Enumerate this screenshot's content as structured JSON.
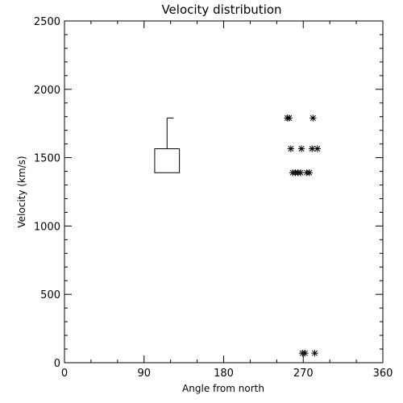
{
  "chart_data": {
    "type": "scatter",
    "title": "Velocity distribution",
    "xlabel": "Angle from north",
    "ylabel": "Velocity (km/s)",
    "xlim": [
      0,
      360
    ],
    "ylim": [
      0,
      2500
    ],
    "xticks": [
      0,
      90,
      180,
      270,
      360
    ],
    "yticks": [
      0,
      500,
      1000,
      1500,
      2000,
      2500
    ],
    "xtick_labels": [
      "0",
      "90",
      "180",
      "270",
      "360"
    ],
    "ytick_labels": [
      "0",
      "500",
      "1000",
      "1500",
      "2000",
      "2500"
    ],
    "grid": false,
    "points": [
      {
        "x": 252,
        "y": 1790
      },
      {
        "x": 254,
        "y": 1790
      },
      {
        "x": 281,
        "y": 1790
      },
      {
        "x": 256,
        "y": 1565
      },
      {
        "x": 268,
        "y": 1565
      },
      {
        "x": 280,
        "y": 1565
      },
      {
        "x": 286,
        "y": 1565
      },
      {
        "x": 258,
        "y": 1390
      },
      {
        "x": 261,
        "y": 1390
      },
      {
        "x": 264,
        "y": 1390
      },
      {
        "x": 267,
        "y": 1390
      },
      {
        "x": 274,
        "y": 1390
      },
      {
        "x": 277,
        "y": 1390
      },
      {
        "x": 269,
        "y": 70
      },
      {
        "x": 272,
        "y": 70
      },
      {
        "x": 283,
        "y": 70
      }
    ],
    "box": {
      "x_range": [
        102,
        130
      ],
      "low": 1390,
      "high": 1565,
      "whisker_high": 1790
    }
  }
}
